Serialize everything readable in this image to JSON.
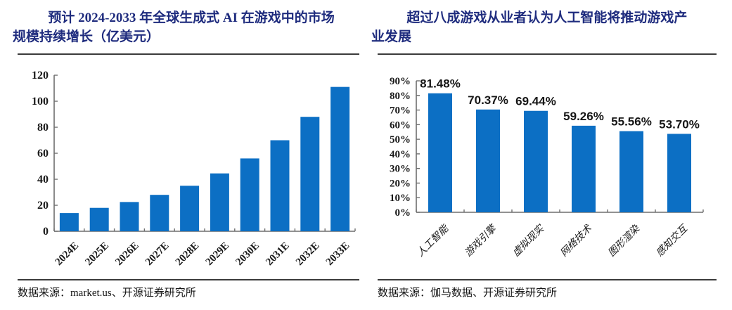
{
  "page": {
    "background": "#ffffff",
    "title_color": "#1F2C7E",
    "axis_color": "#6e6e6e",
    "bar_color": "#0C6FC4"
  },
  "panels": [
    {
      "title_lines": [
        "预计 2024-2033 年全球生成式 AI 在游戏中的市场",
        "规模持续增长（亿美元）"
      ],
      "source": "数据来源：market.us、开源证券研究所"
    },
    {
      "title_lines": [
        "超过八成游戏从业者认为人工智能将推动游戏产",
        "业发展"
      ],
      "source": "数据来源：伽马数据、开源证券研究所"
    }
  ],
  "chart_data": [
    {
      "type": "bar",
      "title": "预计 2024-2033 年全球生成式 AI 在游戏中的市场规模持续增长（亿美元）",
      "categories": [
        "2024E",
        "2025E",
        "2026E",
        "2027E",
        "2028E",
        "2029E",
        "2030E",
        "2031E",
        "2032E",
        "2033E"
      ],
      "values": [
        14,
        18,
        22.5,
        28,
        35,
        44.5,
        56,
        70,
        88,
        111
      ],
      "xlabel": "",
      "ylabel": "",
      "ylim": [
        0,
        120
      ],
      "ytick_step": 20,
      "ytick_labels": [
        "0",
        "20",
        "40",
        "60",
        "80",
        "100",
        "120"
      ],
      "grid": false,
      "legend": false,
      "bar_color": "#0C6FC4",
      "source": "数据来源：market.us、开源证券研究所"
    },
    {
      "type": "bar",
      "title": "超过八成游戏从业者认为人工智能将推动游戏产业发展",
      "categories": [
        "人工智能",
        "游戏引擎",
        "虚拟现实",
        "网络技术",
        "图形渲染",
        "感知交互"
      ],
      "values": [
        81.48,
        70.37,
        69.44,
        59.26,
        55.56,
        53.7
      ],
      "data_labels": [
        "81.48%",
        "70.37%",
        "69.44%",
        "59.26%",
        "55.56%",
        "53.70%"
      ],
      "xlabel": "",
      "ylabel": "",
      "ylim": [
        0,
        90
      ],
      "ytick_step": 10,
      "ytick_labels": [
        "0%",
        "10%",
        "20%",
        "30%",
        "40%",
        "50%",
        "60%",
        "70%",
        "80%",
        "90%"
      ],
      "grid": false,
      "legend": false,
      "bar_color": "#0C6FC4",
      "source": "数据来源：伽马数据、开源证券研究所"
    }
  ]
}
